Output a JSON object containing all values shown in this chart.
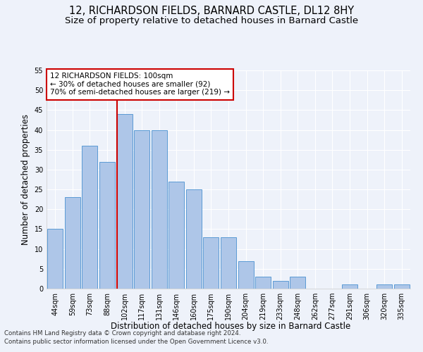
{
  "title": "12, RICHARDSON FIELDS, BARNARD CASTLE, DL12 8HY",
  "subtitle": "Size of property relative to detached houses in Barnard Castle",
  "xlabel": "Distribution of detached houses by size in Barnard Castle",
  "ylabel": "Number of detached properties",
  "footnote1": "Contains HM Land Registry data © Crown copyright and database right 2024.",
  "footnote2": "Contains public sector information licensed under the Open Government Licence v3.0.",
  "categories": [
    "44sqm",
    "59sqm",
    "73sqm",
    "88sqm",
    "102sqm",
    "117sqm",
    "131sqm",
    "146sqm",
    "160sqm",
    "175sqm",
    "190sqm",
    "204sqm",
    "219sqm",
    "233sqm",
    "248sqm",
    "262sqm",
    "277sqm",
    "291sqm",
    "306sqm",
    "320sqm",
    "335sqm"
  ],
  "values": [
    15,
    23,
    36,
    32,
    44,
    40,
    40,
    27,
    25,
    13,
    13,
    7,
    3,
    2,
    3,
    0,
    0,
    1,
    0,
    1,
    1
  ],
  "bar_color": "#aec6e8",
  "bar_edge_color": "#5b9bd5",
  "vline_index": 4,
  "vline_color": "#cc0000",
  "annotation_text": "12 RICHARDSON FIELDS: 100sqm\n← 30% of detached houses are smaller (92)\n70% of semi-detached houses are larger (219) →",
  "annotation_box_color": "#ffffff",
  "annotation_box_edge": "#cc0000",
  "ylim": [
    0,
    55
  ],
  "yticks": [
    0,
    5,
    10,
    15,
    20,
    25,
    30,
    35,
    40,
    45,
    50,
    55
  ],
  "background_color": "#eef2fa",
  "grid_color": "#ffffff",
  "title_fontsize": 10.5,
  "subtitle_fontsize": 9.5,
  "axis_label_fontsize": 8.5,
  "tick_fontsize": 7,
  "annotation_fontsize": 7.5
}
